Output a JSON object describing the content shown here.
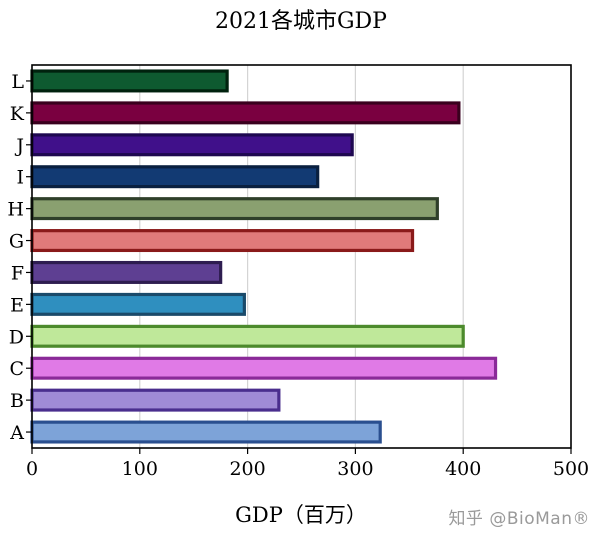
{
  "chart_data": {
    "type": "bar",
    "orientation": "horizontal",
    "title": "2021各城市GDP",
    "xlabel": "GDP（百万）",
    "ylabel": "",
    "xlim": [
      0,
      500
    ],
    "x_ticks": [
      0,
      100,
      200,
      300,
      400,
      500
    ],
    "grid": "vertical",
    "categories": [
      "A",
      "B",
      "C",
      "D",
      "E",
      "F",
      "G",
      "H",
      "I",
      "J",
      "K",
      "L"
    ],
    "values": [
      323,
      229,
      430,
      400,
      197,
      175,
      353,
      376,
      265,
      297,
      396,
      181
    ],
    "fill_colors": [
      "#7da3d8",
      "#a08bd6",
      "#e07ae6",
      "#bfe89a",
      "#2f8fbf",
      "#5e3f92",
      "#e07a7a",
      "#8aa070",
      "#123a73",
      "#40108a",
      "#7a0040",
      "#0e5a30"
    ],
    "edge_colors": [
      "#2a4f8f",
      "#4a2e8e",
      "#8a2a98",
      "#4c8a2c",
      "#1a4a6a",
      "#2e1d50",
      "#8a1a1a",
      "#2f3f2a",
      "#0a2040",
      "#1e0850",
      "#3a001e",
      "#00220e"
    ]
  },
  "watermark": "知乎 @BioMan®"
}
